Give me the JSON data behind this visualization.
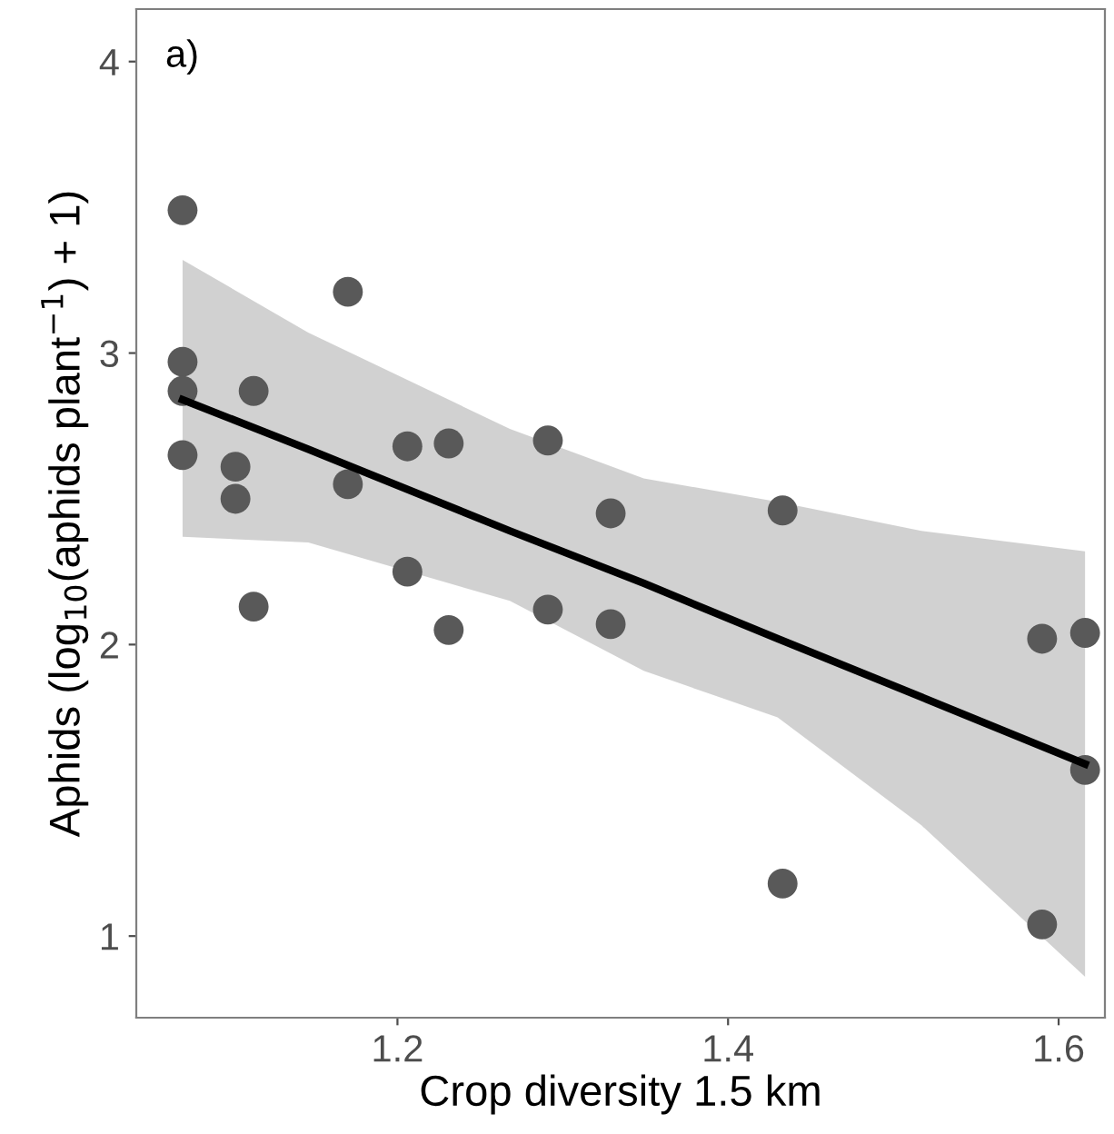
{
  "chart_data": {
    "type": "scatter",
    "xlabel": "Crop diversity 1.5 km",
    "ylabel": "Aphids (log$_{10}$(aphids plant$^{−1}$) + 1)",
    "annotations": [
      "a)"
    ],
    "xlim": [
      1.042,
      1.628
    ],
    "ylim": [
      0.72,
      4.18
    ],
    "xticks": [
      1.2,
      1.4,
      1.6
    ],
    "yticks": [
      1,
      2,
      3,
      4
    ],
    "grid": false,
    "legend": false,
    "series": [
      {
        "color": "#595959",
        "marker": "circle",
        "x": [
          1.07,
          1.07,
          1.07,
          1.07,
          1.102,
          1.102,
          1.113,
          1.113,
          1.17,
          1.17,
          1.206,
          1.206,
          1.231,
          1.231,
          1.291,
          1.291,
          1.329,
          1.329,
          1.433,
          1.433,
          1.59,
          1.616,
          1.616,
          1.59
        ],
        "values": [
          3.49,
          2.97,
          2.87,
          2.65,
          2.61,
          2.5,
          2.87,
          2.13,
          3.21,
          2.55,
          2.68,
          2.25,
          2.69,
          2.05,
          2.7,
          2.12,
          2.45,
          2.07,
          2.46,
          1.18,
          2.02,
          2.04,
          1.57,
          1.04
        ]
      },
      {
        "type": "line",
        "color": "#000000",
        "marker": "none",
        "line_style": "solid",
        "x": [
          1.07,
          1.146,
          1.268,
          1.349,
          1.43,
          1.517,
          1.616
        ],
        "values": [
          2.84,
          2.67,
          2.39,
          2.21,
          2.02,
          1.82,
          1.59
        ],
        "lower": [
          2.37,
          2.35,
          2.15,
          1.91,
          1.75,
          1.38,
          0.86
        ],
        "upper": [
          3.32,
          3.07,
          2.74,
          2.57,
          2.49,
          2.39,
          2.32
        ]
      }
    ]
  }
}
